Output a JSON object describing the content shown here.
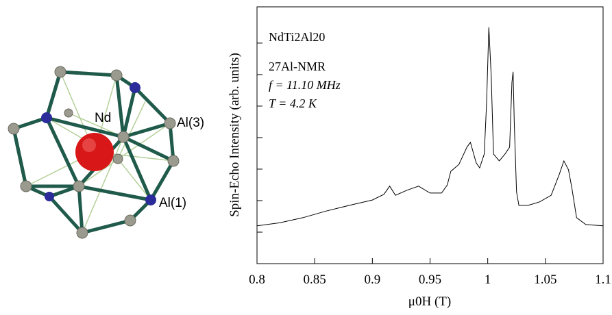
{
  "chart_data": {
    "type": "line",
    "xlabel": "μ0H  (T)",
    "ylabel": "Spin-Echo Intensity  (arb. units)",
    "annotations": [
      "NdTi2Al20",
      "27Al-NMR",
      "f = 11.10 MHz",
      "T = 4.2 K"
    ],
    "x": [
      0.8,
      0.82,
      0.84,
      0.86,
      0.88,
      0.9,
      0.91,
      0.915,
      0.92,
      0.93,
      0.94,
      0.95,
      0.96,
      0.965,
      0.968,
      0.975,
      0.982,
      0.985,
      0.99,
      0.993,
      0.997,
      0.999,
      1.001,
      1.003,
      1.005,
      1.01,
      1.015,
      1.019,
      1.021,
      1.022,
      1.023,
      1.025,
      1.027,
      1.035,
      1.045,
      1.055,
      1.062,
      1.066,
      1.07,
      1.073,
      1.077,
      1.085,
      1.1
    ],
    "values": [
      1.2,
      1.3,
      1.46,
      1.67,
      1.85,
      2.02,
      2.2,
      2.46,
      2.17,
      2.33,
      2.46,
      2.24,
      2.24,
      2.5,
      2.93,
      3.15,
      3.7,
      3.85,
      3.2,
      3.04,
      3.48,
      5.1,
      7.5,
      5.98,
      3.48,
      3.26,
      3.48,
      3.7,
      5.76,
      6.09,
      4.46,
      2.28,
      1.85,
      1.85,
      1.96,
      2.17,
      2.83,
      3.26,
      2.98,
      2.39,
      1.46,
      1.24,
      1.2
    ],
    "color": "#000000",
    "xlim": [
      0.8,
      1.1
    ],
    "xticks": [
      0.8,
      0.85,
      0.9,
      0.95,
      1,
      1.05,
      1.1
    ],
    "ylim": [
      0,
      8.15
    ],
    "yticks": [
      1,
      2,
      3,
      4,
      5,
      6,
      7
    ]
  },
  "structure": {
    "labels": [
      "Nd",
      "Al(3)",
      "Al(1)"
    ]
  }
}
